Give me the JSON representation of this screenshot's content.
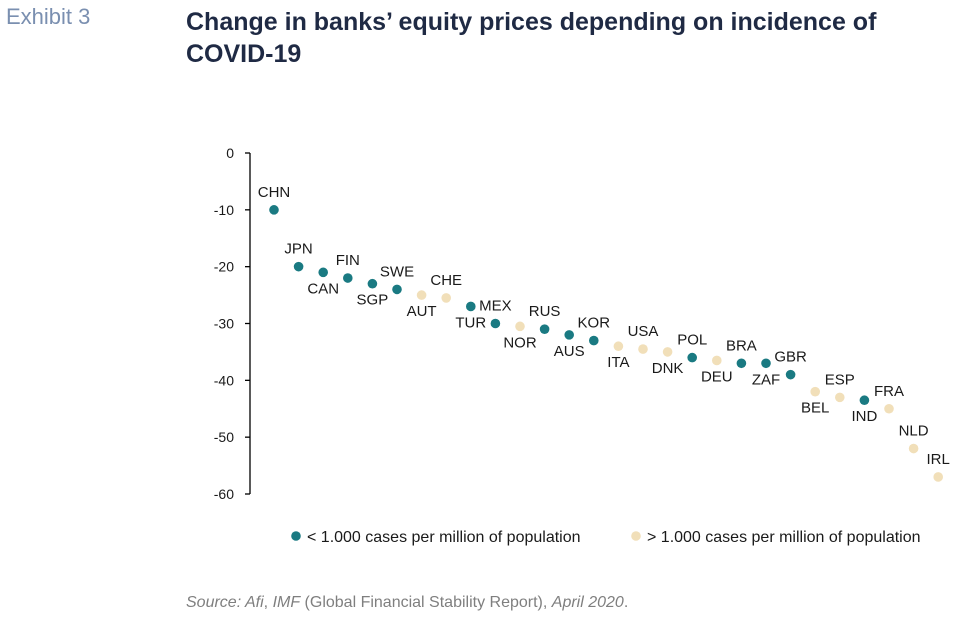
{
  "header": {
    "exhibit": "Exhibit 3",
    "title": "Change in banks’ equity prices depending on incidence of COVID-19"
  },
  "source": {
    "prefix": "Source: ",
    "org1": "Afi",
    "sep": ", ",
    "org2": "IMF",
    "report": " (Global Financial Stability Report)",
    "sep2": ", ",
    "date": "April 2020",
    "end": "."
  },
  "colors": {
    "low": "#1a7a82",
    "high": "#f1dfb9"
  },
  "chart_data": {
    "type": "scatter",
    "ylim": [
      -60,
      0
    ],
    "yticks": [
      0,
      -10,
      -20,
      -30,
      -40,
      -50,
      -60
    ],
    "legend": [
      {
        "key": "low",
        "label": "< 1.000 cases per million of population"
      },
      {
        "key": "high",
        "label": "> 1.000 cases per million of population"
      }
    ],
    "points": [
      {
        "label": "CHN",
        "value": -10,
        "group": "low",
        "lp": "above"
      },
      {
        "label": "JPN",
        "value": -20,
        "group": "low",
        "lp": "above"
      },
      {
        "label": "CAN",
        "value": -21,
        "group": "low",
        "lp": "below"
      },
      {
        "label": "FIN",
        "value": -22,
        "group": "low",
        "lp": "above"
      },
      {
        "label": "SGP",
        "value": -23,
        "group": "low",
        "lp": "below"
      },
      {
        "label": "SWE",
        "value": -24,
        "group": "low",
        "lp": "above"
      },
      {
        "label": "AUT",
        "value": -25,
        "group": "high",
        "lp": "below"
      },
      {
        "label": "CHE",
        "value": -25.5,
        "group": "high",
        "lp": "above"
      },
      {
        "label": "TUR",
        "value": -27,
        "group": "low",
        "lp": "below"
      },
      {
        "label": "MEX",
        "value": -30,
        "group": "low",
        "lp": "above"
      },
      {
        "label": "NOR",
        "value": -30.5,
        "group": "high",
        "lp": "below"
      },
      {
        "label": "RUS",
        "value": -31,
        "group": "low",
        "lp": "above"
      },
      {
        "label": "AUS",
        "value": -32,
        "group": "low",
        "lp": "below"
      },
      {
        "label": "KOR",
        "value": -33,
        "group": "low",
        "lp": "above"
      },
      {
        "label": "ITA",
        "value": -34,
        "group": "high",
        "lp": "below"
      },
      {
        "label": "USA",
        "value": -34.5,
        "group": "high",
        "lp": "above"
      },
      {
        "label": "DNK",
        "value": -35,
        "group": "high",
        "lp": "below"
      },
      {
        "label": "POL",
        "value": -36,
        "group": "low",
        "lp": "above"
      },
      {
        "label": "DEU",
        "value": -36.5,
        "group": "high",
        "lp": "below"
      },
      {
        "label": "BRA",
        "value": -37,
        "group": "low",
        "lp": "above"
      },
      {
        "label": "ZAF",
        "value": -37,
        "group": "low",
        "lp": "below"
      },
      {
        "label": "GBR",
        "value": -39,
        "group": "low",
        "lp": "above"
      },
      {
        "label": "BEL",
        "value": -42,
        "group": "high",
        "lp": "below"
      },
      {
        "label": "ESP",
        "value": -43,
        "group": "high",
        "lp": "above"
      },
      {
        "label": "IND",
        "value": -43.5,
        "group": "low",
        "lp": "below"
      },
      {
        "label": "FRA",
        "value": -45,
        "group": "high",
        "lp": "above"
      },
      {
        "label": "NLD",
        "value": -52,
        "group": "high",
        "lp": "above"
      },
      {
        "label": "IRL",
        "value": -57,
        "group": "high",
        "lp": "above"
      }
    ]
  }
}
